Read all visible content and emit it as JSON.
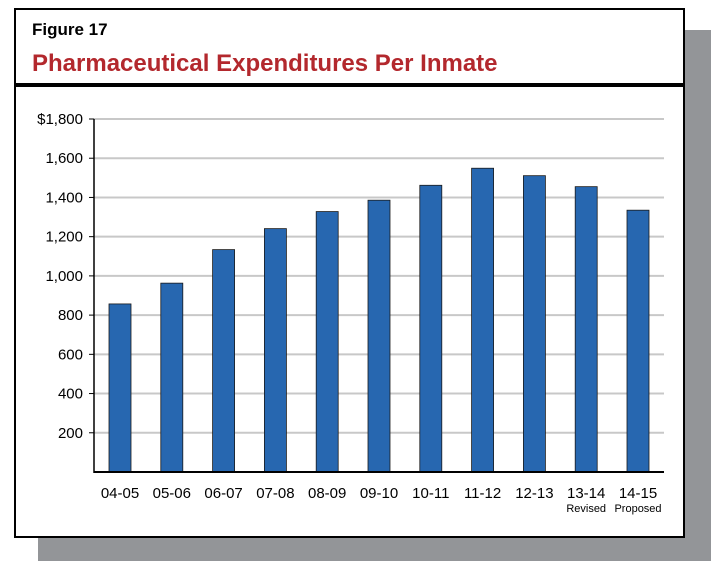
{
  "figure_label": "Figure 17",
  "chart_data": {
    "type": "bar",
    "title": "Pharmaceutical Expenditures Per Inmate",
    "categories": [
      "04-05",
      "05-06",
      "06-07",
      "07-08",
      "08-09",
      "09-10",
      "10-11",
      "11-12",
      "12-13",
      "13-14",
      "14-15"
    ],
    "category_sublabels": [
      "",
      "",
      "",
      "",
      "",
      "",
      "",
      "",
      "",
      "Revised",
      "Proposed"
    ],
    "values": [
      857,
      963,
      1134,
      1241,
      1328,
      1386,
      1462,
      1549,
      1511,
      1455,
      1335
    ],
    "ylim": [
      0,
      1800
    ],
    "yticks": [
      200,
      400,
      600,
      800,
      1000,
      1200,
      1400,
      1600,
      1800
    ],
    "ytick_labels": [
      "200",
      "400",
      "600",
      "800",
      "1,000",
      "1,200",
      "1,400",
      "1,600",
      "$1,800"
    ],
    "xlabel": "",
    "ylabel": "",
    "grid": true,
    "bar_color": "#2767b0",
    "title_color": "#b3282d"
  }
}
